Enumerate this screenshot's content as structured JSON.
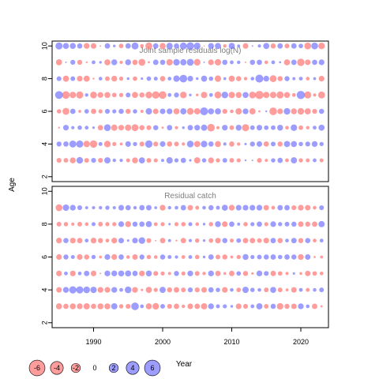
{
  "chart_data": [
    {
      "type": "scatter",
      "subtype": "bubble",
      "title": "Joint sample residuals log(N)",
      "ylabel": "Age",
      "xlabel": "",
      "xlim": [
        1984,
        2024
      ],
      "ylim": [
        1.7,
        10.3
      ],
      "y_ticks": [
        2,
        4,
        6,
        8,
        10
      ],
      "x_tick_labels_visible": false,
      "years_first": 1985,
      "years_last": 2023,
      "ages": [
        3,
        4,
        5,
        6,
        7,
        8,
        9,
        10
      ],
      "residual_matrix_ages_by_year": [
        [
          -2.0,
          -1.8,
          -2.9,
          3.6,
          -1.9,
          2.0,
          -2.0,
          3.3,
          1.0,
          0.9,
          -1.3,
          -2.9,
          3.1,
          -1.9,
          -1.4,
          0.8,
          3.4,
          1.5,
          2.3,
          0.5,
          -3.2,
          1.6,
          -2.8,
          -1.5,
          1.8,
          -1.8,
          -1.4,
          0.3,
          0.2,
          -1.9,
          -0.8,
          1.6,
          2.3,
          -1.2,
          3.2,
          -1.5,
          -1.3,
          1.2,
          -1.3
        ],
        [
          2.1,
          2.3,
          4.1,
          4.2,
          -3.5,
          -4.5,
          1.3,
          -3.6,
          -1.4,
          -0.7,
          2.6,
          1.5,
          -2.0,
          4.5,
          -2.0,
          2.6,
          -2.3,
          -1.9,
          -0.9,
          3.8,
          -3.2,
          3.6,
          2.3,
          -3.0,
          0.9,
          -2.3,
          -1.0,
          0.5,
          2.1,
          2.6,
          -2.3,
          1.9,
          -2.2,
          3.2,
          3.0,
          1.6,
          2.0,
          2.8,
          1.5
        ],
        [
          -0.3,
          2.6,
          0.9,
          1.6,
          1.2,
          0.5,
          -2.4,
          3.8,
          -3.3,
          -2.6,
          -3.3,
          -4.0,
          -2.3,
          -1.9,
          2.2,
          -0.4,
          2.4,
          -0.9,
          0.6,
          2.4,
          2.7,
          3.2,
          -4.7,
          -0.9,
          2.7,
          -1.8,
          2.9,
          -4.2,
          1.8,
          2.6,
          1.7,
          1.8,
          2.9,
          -1.1,
          3.5,
          -1.7,
          -1.0,
          1.2,
          3.1
        ],
        [
          -1.6,
          -3.9,
          2.4,
          -0.7,
          1.7,
          -2.4,
          -1.4,
          2.0,
          1.4,
          2.2,
          -2.2,
          1.6,
          -0.8,
          3.4,
          -2.5,
          2.6,
          2.8,
          -3.0,
          3.2,
          -3.8,
          -3.2,
          5.2,
          3.0,
          3.1,
          -2.0,
          -1.1,
          -3.3,
          2.8,
          -3.2,
          -0.4,
          0.3,
          -4.8,
          -2.7,
          3.6,
          -2.9,
          -3.6,
          -3.1,
          -2.0,
          2.2
        ],
        [
          5.1,
          -4.8,
          -3.4,
          -4.3,
          1.0,
          -3.8,
          -2.8,
          -2.9,
          -1.7,
          -1.5,
          1.9,
          -3.1,
          -2.3,
          -3.8,
          -4.6,
          -4.8,
          1.2,
          2.1,
          -3.7,
          0.6,
          -0.6,
          -3.4,
          1.2,
          -4.0,
          3.7,
          -3.4,
          -2.9,
          3.0,
          -3.8,
          -5.6,
          -3.3,
          -3.4,
          -4.2,
          -2.9,
          -1.2,
          5.6,
          -4.2,
          -0.9,
          -4.0
        ],
        [
          1.9,
          -3.1,
          1.8,
          -2.7,
          -3.1,
          -0.3,
          1.1,
          -1.8,
          -2.8,
          -1.5,
          0.6,
          -1.7,
          0.5,
          1.7,
          1.3,
          -2.3,
          1.2,
          3.4,
          4.9,
          2.7,
          0.6,
          3.1,
          1.6,
          -3.4,
          0.7,
          -3.1,
          -2.2,
          -1.0,
          1.1,
          5.3,
          2.8,
          -3.9,
          -2.2,
          2.1,
          0.8,
          1.2,
          -1.1,
          0.7,
          -2.7
        ],
        [
          -3.1,
          0.2,
          2.0,
          -2.1,
          -0.3,
          1.2,
          0.6,
          -3.0,
          2.9,
          -0.9,
          2.9,
          -2.4,
          -4.0,
          -0.4,
          2.5,
          2.3,
          -3.4,
          3.5,
          3.3,
          4.0,
          -3.7,
          0.2,
          -2.7,
          -3.4,
          2.3,
          1.2,
          1.0,
          -0.2,
          2.3,
          2.3,
          -1.1,
          1.2,
          0.4,
          -3.0,
          2.4,
          -4.5,
          -2.6,
          2.3,
          2.7
        ],
        [
          4.2,
          3.0,
          3.0,
          2.3,
          -2.8,
          -2.6,
          -0.2,
          2.4,
          0.6,
          -1.8,
          2.4,
          4.0,
          -1.2,
          -4.0,
          2.4,
          -3.0,
          3.4,
          2.3,
          4.0,
          4.7,
          3.7,
          -0.1,
          2.9,
          3.1,
          -1.0,
          3.2,
          0.8,
          -2.6,
          0.2,
          0.9,
          3.1,
          -2.2,
          2.4,
          -2.0,
          2.4,
          1.7,
          -3.8,
          3.8,
          -3.6
        ]
      ],
      "bubble_legend_values": [
        "-6",
        "-4",
        "-2",
        "0",
        "2",
        "4",
        "6"
      ]
    },
    {
      "type": "scatter",
      "subtype": "bubble",
      "title": "Residual catch",
      "ylabel": "Age",
      "xlabel": "Year",
      "xlim": [
        1984,
        2024
      ],
      "ylim": [
        1.7,
        10.3
      ],
      "y_ticks": [
        2,
        4,
        6,
        8,
        10
      ],
      "x_ticks": [
        1990,
        2000,
        2010,
        2020
      ],
      "years_first": 1985,
      "years_last": 2023,
      "ages": [
        3,
        4,
        5,
        6,
        7,
        8,
        9
      ],
      "residual_matrix_ages_by_year": [
        [
          -3.1,
          -2.3,
          -2.9,
          -2.8,
          -3.2,
          -2.3,
          -2.9,
          -2.9,
          3.2,
          -1.6,
          -2.0,
          4.8,
          1.2,
          -3.1,
          -3.6,
          1.8,
          -1.9,
          -2.4,
          -1.0,
          -2.6,
          -2.4,
          -3.2,
          2.8,
          1.3,
          1.4,
          0.6,
          -2.7,
          -1.9,
          1.2,
          3.2,
          -1.8,
          2.2,
          -3.5,
          -2.1,
          -2.5,
          2.8,
          1.1,
          -2.5,
          -0.4
        ],
        [
          -2.6,
          2.9,
          4.4,
          4.3,
          3.7,
          3.4,
          -2.8,
          -2.7,
          2.8,
          1.2,
          3.7,
          -2.8,
          -0.5,
          -3.2,
          -1.4,
          3.2,
          -2.2,
          -2.5,
          -1.8,
          2.0,
          -2.0,
          -2.5,
          2.3,
          1.6,
          -2.7,
          1.1,
          -1.7,
          3.3,
          1.6,
          1.1,
          -1.8,
          3.0,
          -1.9,
          -0.7,
          -2.5,
          1.2,
          -1.3,
          1.1,
          1.8
        ],
        [
          -2.7,
          1.2,
          -2.6,
          1.1,
          2.5,
          -2.6,
          -0.2,
          2.8,
          2.8,
          2.9,
          3.1,
          2.4,
          -2.7,
          2.9,
          -2.0,
          -1.4,
          -0.8,
          2.1,
          -1.4,
          2.7,
          -1.9,
          -1.0,
          2.8,
          -2.4,
          -0.7,
          -2.5,
          1.7,
          -2.1,
          -0.5,
          2.8,
          2.0,
          -2.4,
          -1.7,
          -0.9,
          0.5,
          -0.7,
          -2.5,
          -1.7,
          -1.1
        ],
        [
          -2.7,
          2.1,
          1.3,
          -2.7,
          -2.2,
          1.5,
          -0.7,
          2.7,
          -2.7,
          2.3,
          -1.1,
          -2.5,
          2.1,
          -1.6,
          -1.1,
          2.2,
          1.3,
          0.9,
          -1.2,
          1.2,
          -1.7,
          0.6,
          2.4,
          -1.9,
          -2.2,
          -0.7,
          -1.5,
          2.9,
          1.4,
          1.8,
          2.2,
          2.4,
          1.6,
          2.3,
          2.2,
          -2.8,
          2.5,
          -0.4,
          -0.7
        ],
        [
          -2.8,
          2.3,
          -2.7,
          -2.5,
          1.2,
          -2.8,
          -2.1,
          -1.2,
          -2.8,
          2.5,
          0.5,
          2.7,
          3.7,
          -1.9,
          -0.2,
          -2.4,
          0.8,
          -0.3,
          -2.5,
          0.9,
          -1.6,
          0.6,
          -1.7,
          -2.6,
          2.2,
          -1.3,
          1.8,
          -2.5,
          -2.4,
          -1.8,
          -2.7,
          2.4,
          -2.3,
          1.2,
          2.5,
          -2.1,
          2.3,
          -1.2,
          1.2
        ],
        [
          -1.9,
          -1.6,
          -0.9,
          -1.8,
          -1.1,
          1.3,
          -1.8,
          -1.5,
          -1.4,
          2.7,
          -2.9,
          2.2,
          2.4,
          3.0,
          -1.2,
          -1.4,
          0.5,
          -1.4,
          -1.6,
          1.3,
          -1.1,
          0.6,
          -1.6,
          2.9,
          -2.7,
          2.4,
          0.8,
          -1.6,
          1.4,
          2.4,
          -1.4,
          2.7,
          1.5,
          1.9,
          2.2,
          -2.6,
          -2.1,
          -2.4,
          3.2
        ],
        [
          -3.9,
          3.4,
          2.8,
          1.9,
          0.8,
          0.9,
          1.0,
          1.5,
          0.9,
          2.6,
          2.3,
          1.0,
          2.4,
          2.5,
          0.7,
          -2.8,
          1.0,
          1.1,
          2.4,
          -2.5,
          -1.3,
          1.1,
          2.2,
          1.3,
          3.1,
          -2.8,
          2.6,
          2.7,
          2.7,
          2.8,
          -2.5,
          -1.2,
          2.4,
          2.4,
          -2.0,
          -2.8,
          -2.5,
          -1.1,
          1.9
        ]
      ],
      "bubble_legend_values": [
        "-6",
        "-4",
        "-2",
        "0",
        "2",
        "4",
        "6"
      ]
    }
  ],
  "legend": {
    "values": [
      -6,
      -4,
      -2,
      0,
      2,
      4,
      6
    ],
    "labels": [
      "-6",
      "-4",
      "-2",
      "0",
      "2",
      "4",
      "6"
    ]
  },
  "colors": {
    "positive": "#3b3bff",
    "negative": "#ff3b3b",
    "frame": "#000000",
    "panel_title": "#7f7f7f"
  },
  "shared_axis": {
    "ylabel": "Age",
    "xlabel": "Year"
  }
}
